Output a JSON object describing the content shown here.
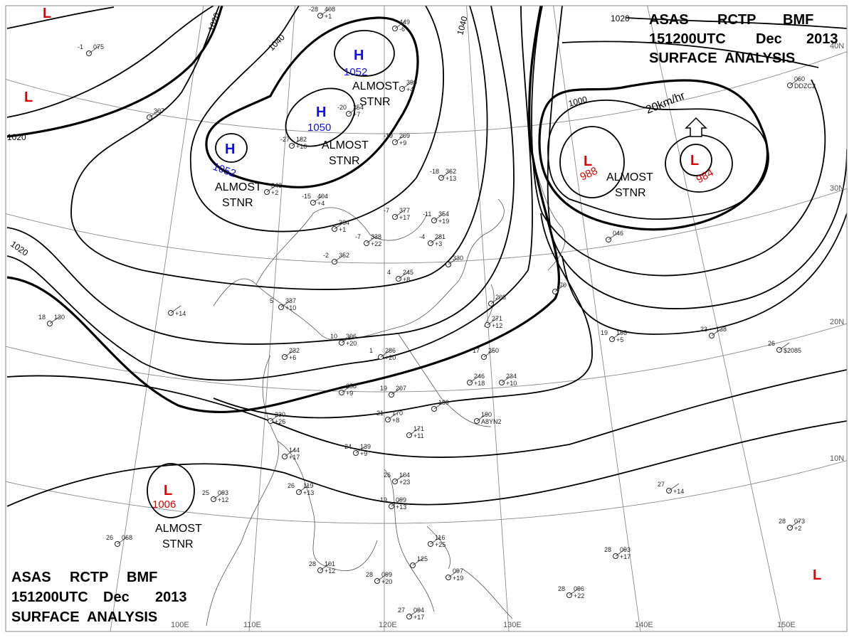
{
  "header": {
    "line1": [
      "ASAS",
      "RCTP",
      "BMF"
    ],
    "line2": [
      "151200UTC",
      "Dec",
      "2013"
    ],
    "line3": "SURFACE  ANALYSIS"
  },
  "colors": {
    "high": "#1010e0",
    "low": "#e00000",
    "isobar": "#000000",
    "grid": "#8a8a8a"
  },
  "grid": {
    "latitudes": [
      "40N",
      "30N",
      "20N",
      "10N"
    ],
    "longitudes": [
      "100E",
      "110E",
      "120E",
      "130E",
      "140E",
      "150E"
    ]
  },
  "isobar_labels": [
    "1020",
    "1020",
    "1020",
    "1040",
    "1040",
    "1020",
    "1000"
  ],
  "motion": {
    "speed": "20km/hr",
    "arrow": "arrow-up-icon"
  },
  "pressure_centers": {
    "highs": [
      {
        "symbol": "H",
        "value": "1052"
      },
      {
        "symbol": "H",
        "value": "1050"
      },
      {
        "symbol": "H",
        "value": "1052"
      }
    ],
    "lows": [
      {
        "symbol": "L",
        "value": "1006"
      },
      {
        "symbol": "L",
        "value": "988"
      },
      {
        "symbol": "L",
        "value": "984"
      },
      {
        "symbol": "L",
        "value": ""
      },
      {
        "symbol": "L",
        "value": ""
      },
      {
        "symbol": "L",
        "value": ""
      }
    ]
  },
  "movement_notes": [
    [
      "ALMOST",
      "STNR"
    ],
    [
      "ALMOST",
      "STNR"
    ],
    [
      "ALMOST",
      "STNR"
    ],
    [
      "ALMOST",
      "STNR"
    ],
    [
      "ALMOST",
      "STNR"
    ]
  ],
  "stations": [
    [
      "-1",
      "075",
      ""
    ],
    [
      "",
      "307",
      ""
    ],
    [
      "",
      "348",
      "+2"
    ],
    [
      "-15",
      "404",
      "+4"
    ],
    [
      "-27",
      "182",
      "+10"
    ],
    [
      "-20",
      "254",
      "+7"
    ],
    [
      "-19",
      "209",
      "+9"
    ],
    [
      "",
      "399",
      "+4"
    ],
    [
      "",
      "449",
      "-6"
    ],
    [
      "-28",
      "408",
      "+1"
    ],
    [
      "-18",
      "362",
      "+13"
    ],
    [
      "-7",
      "377",
      "+17"
    ],
    [
      "-11",
      "354",
      "+19"
    ],
    [
      "",
      "384",
      "+1"
    ],
    [
      "-7",
      "338",
      "+22"
    ],
    [
      "-2",
      "352",
      ""
    ],
    [
      "5",
      "337",
      "+10"
    ],
    [
      "",
      "",
      "+14"
    ],
    [
      "18",
      "130",
      ""
    ],
    [
      "10",
      "306",
      "+20"
    ],
    [
      "1",
      "286",
      "+20"
    ],
    [
      "",
      "232",
      "+6"
    ],
    [
      "",
      "258",
      "+9"
    ],
    [
      "19",
      "207",
      ""
    ],
    [
      "",
      "189",
      ""
    ],
    [
      "",
      "190",
      "A8YN2"
    ],
    [
      "",
      "246",
      "+18"
    ],
    [
      "",
      "234",
      "+10"
    ],
    [
      "17",
      "250",
      ""
    ],
    [
      "21",
      "170",
      "+8"
    ],
    [
      "",
      "171",
      "+11"
    ],
    [
      "",
      "230",
      "+26"
    ],
    [
      "",
      "144",
      "+17"
    ],
    [
      "24",
      "139",
      "+9"
    ],
    [
      "26",
      "119",
      "+13"
    ],
    [
      "25",
      "093",
      "+12"
    ],
    [
      "26",
      "068",
      ""
    ],
    [
      "26",
      "104",
      "+23"
    ],
    [
      "19",
      "099",
      "+13"
    ],
    [
      "",
      "116",
      "+25"
    ],
    [
      "",
      "097",
      "+19"
    ],
    [
      "28",
      "101",
      "+12"
    ],
    [
      "28",
      "099",
      "+20"
    ],
    [
      "",
      "125",
      ""
    ],
    [
      "27",
      "094",
      "+17"
    ],
    [
      "",
      "271",
      "+12"
    ],
    [
      "",
      "208",
      ""
    ],
    [
      "",
      "330",
      ""
    ],
    [
      "-4",
      "281",
      "+3"
    ],
    [
      "4",
      "245",
      "+8"
    ],
    [
      "",
      "046",
      ""
    ],
    [
      "",
      "70",
      ""
    ],
    [
      "19",
      "198",
      "+5"
    ],
    [
      "23",
      "138",
      ""
    ],
    [
      "26",
      "",
      "$2085"
    ],
    [
      "27",
      "",
      "+14"
    ],
    [
      "28",
      "073",
      "+2"
    ],
    [
      "28",
      "093",
      "+17"
    ],
    [
      "28",
      "096",
      "+22"
    ],
    [
      "",
      "060",
      "DDZC2"
    ]
  ]
}
